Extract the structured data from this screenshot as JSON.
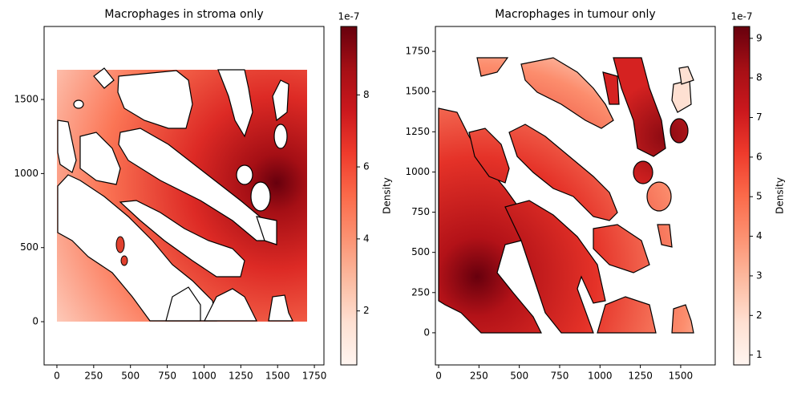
{
  "chart_data": [
    {
      "type": "heatmap",
      "title": "Macrophages in stroma only",
      "xlim": [
        -87,
        1815
      ],
      "ylim": [
        -292,
        1993
      ],
      "xticks": [
        0,
        250,
        500,
        750,
        1000,
        1250,
        1500,
        1750
      ],
      "yticks": [
        0,
        500,
        1000,
        1500
      ],
      "colorbar": {
        "label": "Density",
        "offset_text": "1e-7",
        "lim": [
          0.5,
          9.9
        ],
        "ticks": [
          2,
          4,
          6,
          8
        ],
        "colors": [
          "#fff5f0",
          "#fee0d2",
          "#fcbba1",
          "#fc9272",
          "#fb6a4a",
          "#ef3b2c",
          "#cb181d",
          "#a50f15",
          "#67000d"
        ]
      }
    },
    {
      "type": "heatmap",
      "title": "Macrophages in tumour only",
      "xlim": [
        -20,
        1714
      ],
      "ylim": [
        -200,
        1905
      ],
      "xticks": [
        0,
        250,
        500,
        750,
        1000,
        1250,
        1500
      ],
      "yticks": [
        0,
        250,
        500,
        750,
        1000,
        1250,
        1500,
        1750
      ],
      "colorbar": {
        "label": "Density",
        "offset_text": "1e-7",
        "lim": [
          0.75,
          9.3
        ],
        "ticks": [
          1,
          2,
          3,
          4,
          5,
          6,
          7,
          8,
          9
        ],
        "colors": [
          "#fff5f0",
          "#fee0d2",
          "#fcbba1",
          "#fc9272",
          "#fb6a4a",
          "#ef3b2c",
          "#cb181d",
          "#a50f15",
          "#67000d"
        ]
      }
    }
  ]
}
